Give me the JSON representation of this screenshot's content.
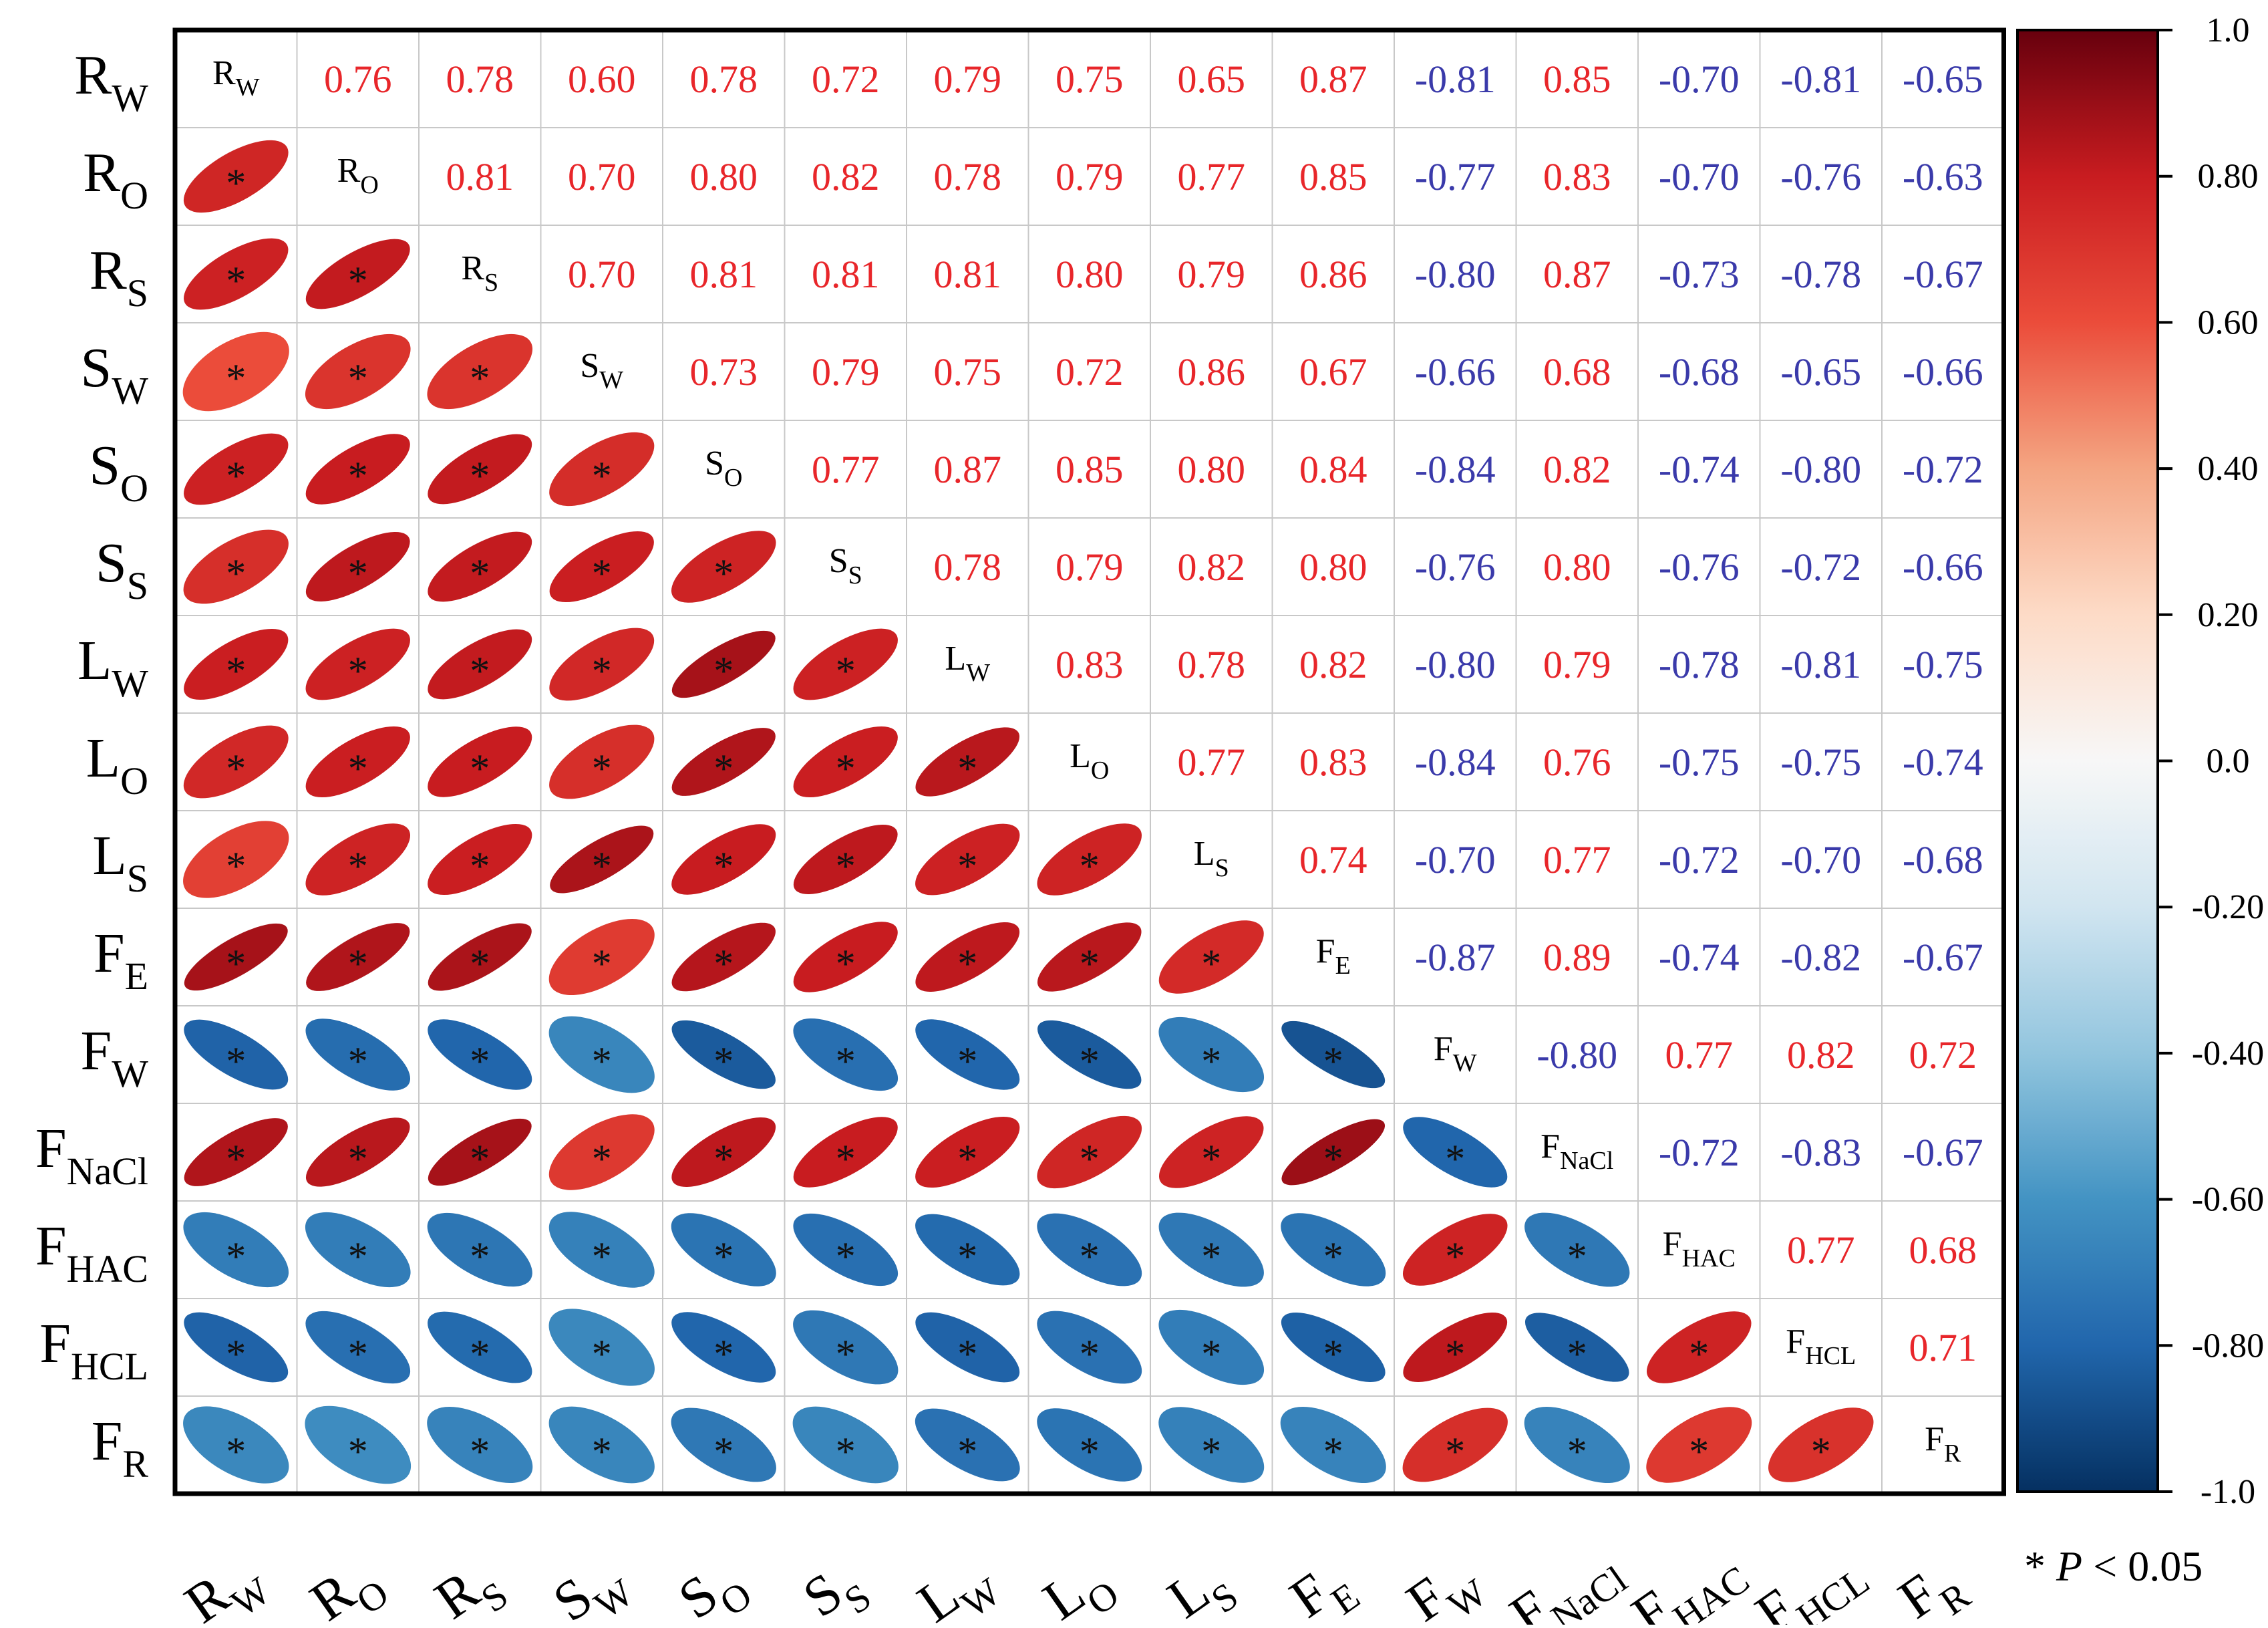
{
  "chart_data": {
    "type": "heatmap",
    "variables": [
      {
        "base": "R",
        "sub": "W"
      },
      {
        "base": "R",
        "sub": "O"
      },
      {
        "base": "R",
        "sub": "S"
      },
      {
        "base": "S",
        "sub": "W"
      },
      {
        "base": "S",
        "sub": "O"
      },
      {
        "base": "S",
        "sub": "S"
      },
      {
        "base": "L",
        "sub": "W"
      },
      {
        "base": "L",
        "sub": "O"
      },
      {
        "base": "L",
        "sub": "S"
      },
      {
        "base": "F",
        "sub": "E"
      },
      {
        "base": "F",
        "sub": "W"
      },
      {
        "base": "F",
        "sub": "NaCl"
      },
      {
        "base": "F",
        "sub": "HAC"
      },
      {
        "base": "F",
        "sub": "HCL"
      },
      {
        "base": "F",
        "sub": "R"
      }
    ],
    "correlation_matrix": [
      [
        1.0,
        0.76,
        0.78,
        0.6,
        0.78,
        0.72,
        0.79,
        0.75,
        0.65,
        0.87,
        -0.81,
        0.85,
        -0.7,
        -0.81,
        -0.65
      ],
      [
        0.76,
        1.0,
        0.81,
        0.7,
        0.8,
        0.82,
        0.78,
        0.79,
        0.77,
        0.85,
        -0.77,
        0.83,
        -0.7,
        -0.76,
        -0.63
      ],
      [
        0.78,
        0.81,
        1.0,
        0.7,
        0.81,
        0.81,
        0.81,
        0.8,
        0.79,
        0.86,
        -0.8,
        0.87,
        -0.73,
        -0.78,
        -0.67
      ],
      [
        0.6,
        0.7,
        0.7,
        1.0,
        0.73,
        0.79,
        0.75,
        0.72,
        0.86,
        0.67,
        -0.66,
        0.68,
        -0.68,
        -0.65,
        -0.66
      ],
      [
        0.78,
        0.8,
        0.81,
        0.73,
        1.0,
        0.77,
        0.87,
        0.85,
        0.8,
        0.84,
        -0.84,
        0.82,
        -0.74,
        -0.8,
        -0.72
      ],
      [
        0.72,
        0.82,
        0.81,
        0.79,
        0.77,
        1.0,
        0.78,
        0.79,
        0.82,
        0.8,
        -0.76,
        0.8,
        -0.76,
        -0.72,
        -0.66
      ],
      [
        0.79,
        0.78,
        0.81,
        0.75,
        0.87,
        0.78,
        1.0,
        0.83,
        0.78,
        0.82,
        -0.8,
        0.79,
        -0.78,
        -0.81,
        -0.75
      ],
      [
        0.75,
        0.79,
        0.8,
        0.72,
        0.85,
        0.79,
        0.83,
        1.0,
        0.77,
        0.83,
        -0.84,
        0.76,
        -0.75,
        -0.75,
        -0.74
      ],
      [
        0.65,
        0.77,
        0.79,
        0.86,
        0.8,
        0.82,
        0.78,
        0.77,
        1.0,
        0.74,
        -0.7,
        0.77,
        -0.72,
        -0.7,
        -0.68
      ],
      [
        0.87,
        0.85,
        0.86,
        0.67,
        0.84,
        0.8,
        0.82,
        0.83,
        0.74,
        1.0,
        -0.87,
        0.89,
        -0.74,
        -0.82,
        -0.67
      ],
      [
        -0.81,
        -0.77,
        -0.8,
        -0.66,
        -0.84,
        -0.76,
        -0.8,
        -0.84,
        -0.7,
        -0.87,
        1.0,
        -0.8,
        0.77,
        0.82,
        0.72
      ],
      [
        0.85,
        0.83,
        0.87,
        0.68,
        0.82,
        0.8,
        0.79,
        0.76,
        0.77,
        0.89,
        -0.8,
        1.0,
        -0.72,
        -0.83,
        -0.67
      ],
      [
        -0.7,
        -0.7,
        -0.73,
        -0.68,
        -0.74,
        -0.76,
        -0.78,
        -0.75,
        -0.72,
        -0.74,
        0.77,
        -0.72,
        1.0,
        0.77,
        0.68
      ],
      [
        -0.81,
        -0.76,
        -0.78,
        -0.65,
        -0.8,
        -0.72,
        -0.81,
        -0.75,
        -0.7,
        -0.82,
        0.82,
        -0.83,
        0.77,
        1.0,
        0.71
      ],
      [
        -0.65,
        -0.63,
        -0.67,
        -0.66,
        -0.72,
        -0.66,
        -0.75,
        -0.74,
        -0.68,
        -0.67,
        0.72,
        -0.67,
        0.68,
        0.71,
        1.0
      ]
    ],
    "upper_triangle": "numbers",
    "lower_triangle": "ellipses",
    "significance_marker": "*",
    "significance_note": {
      "marker": "*",
      "variable": "P",
      "rest": " < 0.05"
    },
    "colorbar": {
      "range": [
        -1.0,
        1.0
      ],
      "ticks": [
        {
          "value": 1.0,
          "label": "1.0"
        },
        {
          "value": 0.8,
          "label": "0.80"
        },
        {
          "value": 0.6,
          "label": "0.60"
        },
        {
          "value": 0.4,
          "label": "0.40"
        },
        {
          "value": 0.2,
          "label": "0.20"
        },
        {
          "value": 0.0,
          "label": "0.0"
        },
        {
          "value": -0.2,
          "label": "-0.20"
        },
        {
          "value": -0.4,
          "label": "-0.40"
        },
        {
          "value": -0.6,
          "label": "-0.60"
        },
        {
          "value": -0.8,
          "label": "-0.80"
        },
        {
          "value": -1.0,
          "label": "-1.0"
        }
      ],
      "colormap": "RdBu_r",
      "position": "right"
    },
    "colors": {
      "positive_text": "#e8262a",
      "negative_text": "#3a3aaa",
      "grid": "#c8c8c8",
      "frame": "#000000"
    }
  }
}
